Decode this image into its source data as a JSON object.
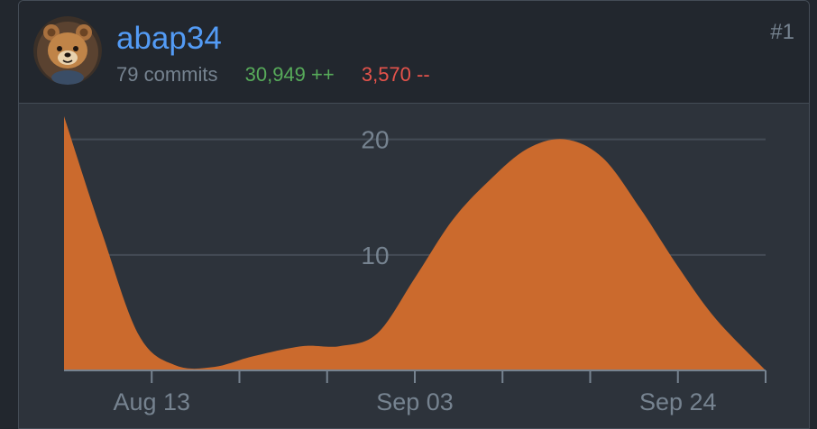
{
  "contributor": {
    "username": "abap34",
    "commits": "79 commits",
    "additions": "30,949 ++",
    "deletions": "3,570 --",
    "rank": "#1",
    "avatar_icon": "bear-avatar-icon"
  },
  "colors": {
    "page_bg": "#22272e",
    "card_bg": "#2d333b",
    "border": "#444c56",
    "link": "#539bf5",
    "muted": "#768390",
    "additions": "#57ab5a",
    "deletions": "#e5534b",
    "area_fill": "#cb6a2d",
    "grid": "#444c56",
    "tick_label": "#768390"
  },
  "chart_data": {
    "type": "area",
    "title": "",
    "xlabel": "",
    "ylabel": "",
    "ylim": [
      0,
      22
    ],
    "x_range_days": [
      0,
      56
    ],
    "x": [
      0,
      3,
      6,
      9,
      12,
      15,
      19,
      22,
      25,
      28,
      31,
      34,
      37,
      40,
      43,
      46,
      49,
      52,
      56
    ],
    "values": [
      22,
      12,
      3,
      0.4,
      0.3,
      1.2,
      2.1,
      2.1,
      3.2,
      8,
      13,
      16.5,
      19.2,
      20,
      18.4,
      14,
      9,
      4.5,
      0
    ],
    "xtick_positions": [
      7,
      14,
      21,
      28,
      35,
      42,
      49,
      56
    ],
    "x_tick_labels": [
      {
        "label": "Aug 13",
        "day": 7
      },
      {
        "label": "Sep 03",
        "day": 28
      },
      {
        "label": "Sep 24",
        "day": 49
      }
    ],
    "y_ticks": [
      {
        "label": "10",
        "value": 10
      },
      {
        "label": "20",
        "value": 20
      }
    ],
    "grid": true
  }
}
